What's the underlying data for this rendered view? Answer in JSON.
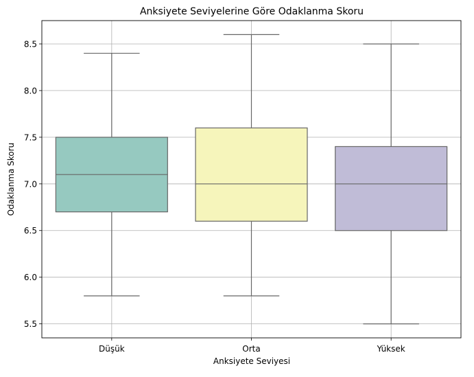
{
  "chart_data": {
    "type": "box",
    "title": "Anksiyete Seviyelerine Göre Odaklanma Skoru",
    "xlabel": "Anksiyete Seviyesi",
    "ylabel": "Odaklanma Skoru",
    "ylim": [
      5.35,
      8.75
    ],
    "yticks": [
      "5.5",
      "6.0",
      "6.5",
      "7.0",
      "7.5",
      "8.0",
      "8.5"
    ],
    "grid": true,
    "categories": [
      "Düşük",
      "Orta",
      "Yüksek"
    ],
    "boxes": [
      {
        "category": "Düşük",
        "whisker_low": 5.8,
        "q1": 6.7,
        "median": 7.1,
        "q3": 7.5,
        "whisker_high": 8.4,
        "color": "#96c9c0"
      },
      {
        "category": "Orta",
        "whisker_low": 5.8,
        "q1": 6.6,
        "median": 7.0,
        "q3": 7.6,
        "whisker_high": 8.6,
        "color": "#f6f5bb"
      },
      {
        "category": "Yüksek",
        "whisker_low": 5.5,
        "q1": 6.5,
        "median": 7.0,
        "q3": 7.4,
        "whisker_high": 8.5,
        "color": "#c0bcd7"
      }
    ]
  }
}
